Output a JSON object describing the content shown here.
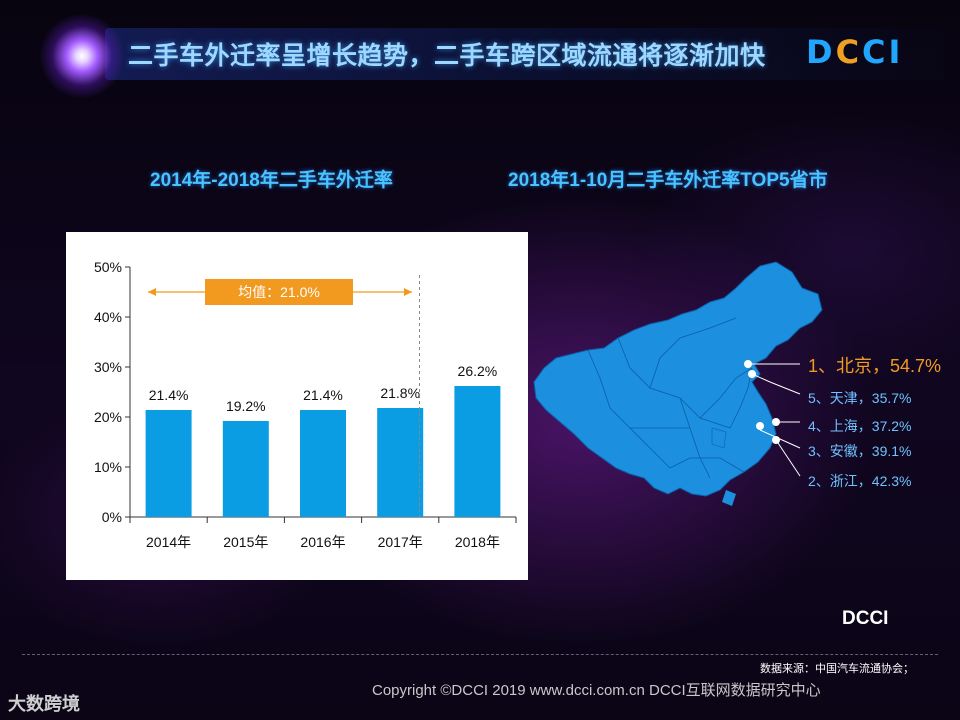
{
  "header": {
    "title": "二手车外迁率呈增长趋势，二手车跨区域流通将逐渐加快",
    "logo": "DCCI"
  },
  "colors": {
    "bar": "#0a9de4",
    "accent_orange": "#f29a1f",
    "title_blue": "#49c4ff",
    "map_fill": "#1c8fde"
  },
  "left_section": {
    "title": "2014年-2018年二手车外迁率"
  },
  "right_section": {
    "title": "2018年1-10月二手车外迁率TOP5省市"
  },
  "mean_annotation": {
    "label": "均值：21.0%",
    "value": 21.0
  },
  "chart_data": [
    {
      "type": "bar",
      "title": "2014年-2018年二手车外迁率",
      "categories": [
        "2014年",
        "2015年",
        "2016年",
        "2017年",
        "2018年"
      ],
      "values": [
        21.4,
        19.2,
        21.4,
        21.8,
        26.2
      ],
      "data_labels": [
        "21.4%",
        "19.2%",
        "21.4%",
        "21.8%",
        "26.2%"
      ],
      "ylim": [
        0,
        50
      ],
      "yticks": [
        "0%",
        "10%",
        "20%",
        "30%",
        "40%",
        "50%"
      ],
      "ytick_values": [
        0,
        10,
        20,
        30,
        40,
        50
      ],
      "grid": false,
      "xlabel": "",
      "ylabel": ""
    },
    {
      "type": "table",
      "title": "2018年1-10月二手车外迁率TOP5省市",
      "items": [
        {
          "rank": 1,
          "label": "1、北京，54.7%",
          "name": "北京",
          "value": 54.7
        },
        {
          "rank": 2,
          "label": "2、浙江，42.3%",
          "name": "浙江",
          "value": 42.3
        },
        {
          "rank": 3,
          "label": "3、安徽，39.1%",
          "name": "安徽",
          "value": 39.1
        },
        {
          "rank": 4,
          "label": "4、上海，37.2%",
          "name": "上海",
          "value": 37.2
        },
        {
          "rank": 5,
          "label": "5、天津，35.7%",
          "name": "天津",
          "value": 35.7
        }
      ]
    }
  ],
  "footer": {
    "source": "数据来源：中国汽车流通协会；",
    "copyright": "Copyright ©DCCI 2019  www.dcci.com.cn   DCCI互联网数据研究中心",
    "watermark_left": "大数跨境",
    "watermark_right": "DCCI"
  }
}
